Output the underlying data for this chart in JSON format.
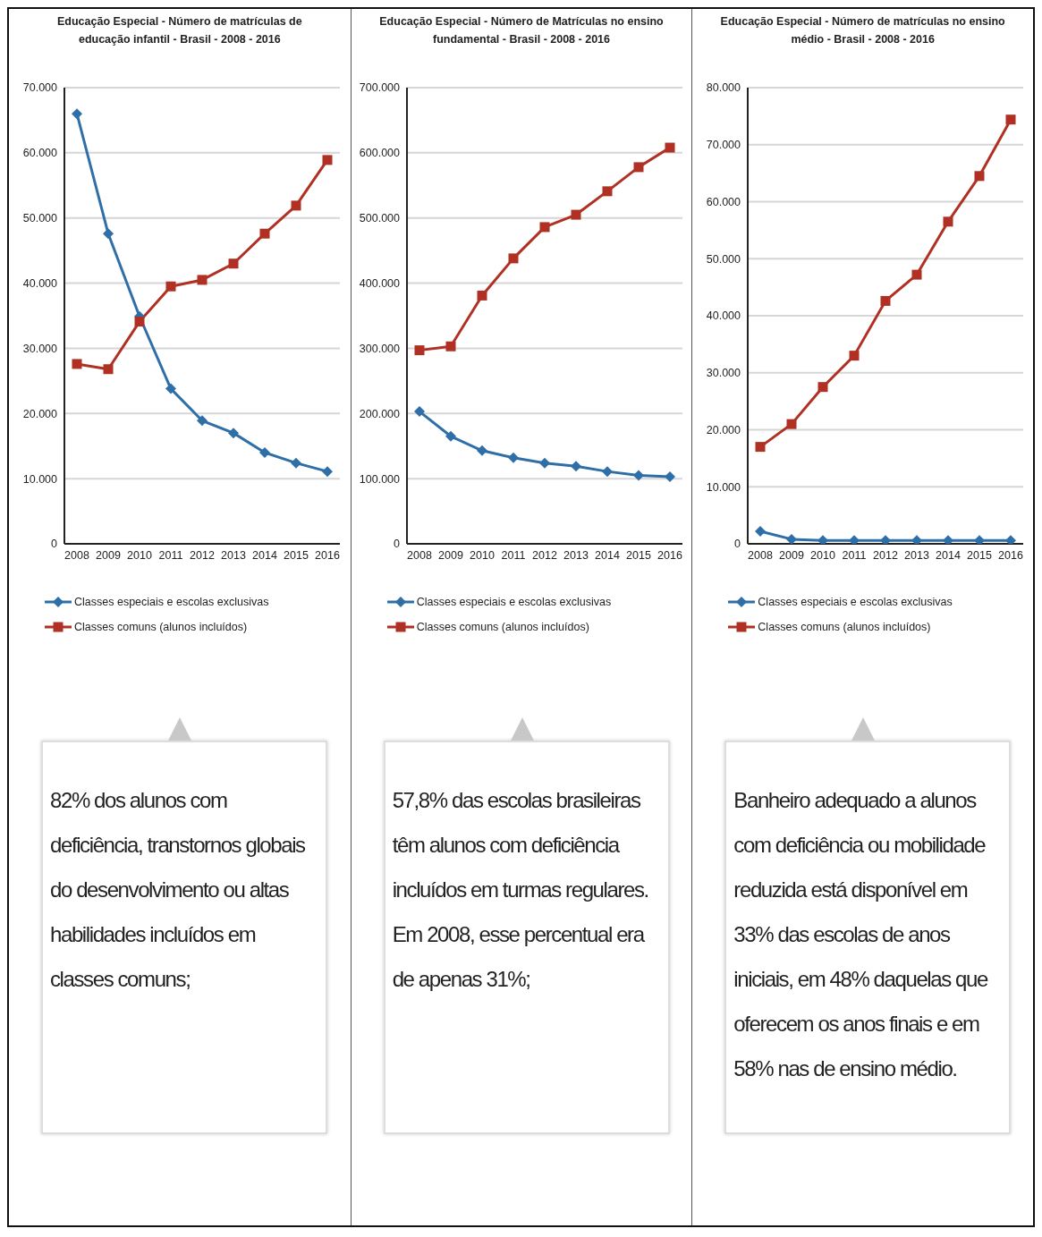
{
  "chart_data": [
    {
      "type": "line",
      "title": "Educação Especial - Número de matrículas de educação infantil  - Brasil - 2008 - 2016",
      "categories": [
        "2008",
        "2009",
        "2010",
        "2011",
        "2012",
        "2013",
        "2014",
        "2015",
        "2016"
      ],
      "ylim": [
        0,
        70000
      ],
      "yticks": [
        {
          "value": 0,
          "label": "0"
        },
        {
          "value": 10000,
          "label": "10.000"
        },
        {
          "value": 20000,
          "label": "20.000"
        },
        {
          "value": 30000,
          "label": "30.000"
        },
        {
          "value": 40000,
          "label": "40.000"
        },
        {
          "value": 50000,
          "label": "50.000"
        },
        {
          "value": 60000,
          "label": "60.000"
        },
        {
          "value": 70000,
          "label": "70.000"
        }
      ],
      "grid": "y",
      "legend": "bottom",
      "series": [
        {
          "name": "Classes especiais e escolas exclusivas",
          "color": "#2f6fa8",
          "marker": "diamond",
          "values": [
            66000,
            47600,
            34900,
            23800,
            18900,
            17000,
            14000,
            12400,
            11100
          ]
        },
        {
          "name": "Classes comuns (alunos incluídos)",
          "color": "#b03024",
          "marker": "square",
          "values": [
            27600,
            26800,
            34100,
            39500,
            40500,
            43000,
            47600,
            51900,
            58900
          ]
        }
      ],
      "annotations": [
        "82% dos alunos com deficiência, transtornos globais do desenvolvimento ou altas habilidades incluídos em classes comuns;"
      ]
    },
    {
      "type": "line",
      "title": "Educação Especial - Número de Matrículas no ensino fundamental - Brasil - 2008 - 2016",
      "categories": [
        "2008",
        "2009",
        "2010",
        "2011",
        "2012",
        "2013",
        "2014",
        "2015",
        "2016"
      ],
      "ylim": [
        0,
        700000
      ],
      "yticks": [
        {
          "value": 0,
          "label": "0"
        },
        {
          "value": 100000,
          "label": "100.000"
        },
        {
          "value": 200000,
          "label": "200.000"
        },
        {
          "value": 300000,
          "label": "300.000"
        },
        {
          "value": 400000,
          "label": "400.000"
        },
        {
          "value": 500000,
          "label": "500.000"
        },
        {
          "value": 600000,
          "label": "600.000"
        },
        {
          "value": 700000,
          "label": "700.000"
        }
      ],
      "grid": "y",
      "legend": "bottom",
      "series": [
        {
          "name": "Classes especiais e escolas exclusivas",
          "color": "#2f6fa8",
          "marker": "diamond",
          "values": [
            203000,
            165000,
            143000,
            132000,
            124000,
            119000,
            111000,
            105000,
            103000
          ]
        },
        {
          "name": "Classes comuns (alunos incluídos)",
          "color": "#b03024",
          "marker": "square",
          "values": [
            297000,
            303000,
            381000,
            438000,
            486000,
            505000,
            541000,
            578000,
            608000
          ]
        }
      ],
      "annotations": [
        "57,8% das escolas brasileiras têm alunos com deficiência incluídos em turmas regulares. Em 2008, esse percentual era de apenas 31%;"
      ]
    },
    {
      "type": "line",
      "title": "Educação Especial - Número de matrículas no ensino médio - Brasil - 2008 - 2016",
      "categories": [
        "2008",
        "2009",
        "2010",
        "2011",
        "2012",
        "2013",
        "2014",
        "2015",
        "2016"
      ],
      "ylim": [
        0,
        80000
      ],
      "yticks": [
        {
          "value": 0,
          "label": "0"
        },
        {
          "value": 10000,
          "label": "10.000"
        },
        {
          "value": 20000,
          "label": "20.000"
        },
        {
          "value": 30000,
          "label": "30.000"
        },
        {
          "value": 40000,
          "label": "40.000"
        },
        {
          "value": 50000,
          "label": "50.000"
        },
        {
          "value": 60000,
          "label": "60.000"
        },
        {
          "value": 70000,
          "label": "70.000"
        },
        {
          "value": 80000,
          "label": "80.000"
        }
      ],
      "grid": "y",
      "legend": "bottom",
      "series": [
        {
          "name": "Classes especiais e escolas exclusivas",
          "color": "#2f6fa8",
          "marker": "diamond",
          "values": [
            2200,
            800,
            600,
            600,
            600,
            600,
            600,
            600,
            600
          ]
        },
        {
          "name": "Classes comuns (alunos incluídos)",
          "color": "#b03024",
          "marker": "square",
          "values": [
            17000,
            21000,
            27500,
            33000,
            42600,
            47200,
            56500,
            64500,
            74400
          ]
        }
      ],
      "annotations": [
        "Banheiro adequado a alunos com deficiência ou mobilidade reduzida está disponível em 33% das escolas de anos iniciais, em 48% daquelas que oferecem os anos finais e em 58% nas de ensino médio."
      ]
    }
  ]
}
